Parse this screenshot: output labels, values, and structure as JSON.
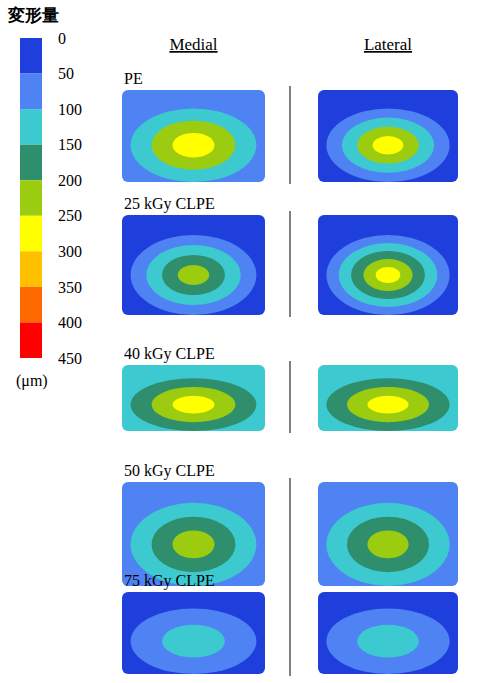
{
  "chart_data": {
    "type": "heatmap",
    "title": "変形量",
    "colorbar": {
      "range": [
        0,
        450
      ],
      "ticks": [
        0,
        50,
        100,
        150,
        200,
        250,
        300,
        350,
        400,
        450
      ],
      "colors": [
        "#1f3fdc",
        "#4f82f2",
        "#3cc9cf",
        "#2f8f6c",
        "#9ccc10",
        "#ffff00",
        "#ffc000",
        "#ff6a00",
        "#ff0000"
      ],
      "unit": "(μm)"
    },
    "columns": [
      "Medial",
      "Lateral"
    ],
    "panels": [
      {
        "name": "PE",
        "medial": [
          50,
          100,
          200,
          250
        ],
        "lateral": [
          0,
          50,
          100,
          200,
          250
        ]
      },
      {
        "name": "25 kGy CLPE",
        "medial": [
          0,
          50,
          100,
          150,
          200
        ],
        "lateral": [
          0,
          50,
          100,
          150,
          200,
          250
        ]
      },
      {
        "name": "40 kGy CLPE",
        "medial": [
          100,
          150,
          200,
          250
        ],
        "lateral": [
          100,
          150,
          200,
          250
        ]
      },
      {
        "name": "50 kGy CLPE",
        "medial": [
          50,
          100,
          150,
          200
        ],
        "lateral": [
          50,
          100,
          150,
          200
        ]
      },
      {
        "name": "75 kGy CLPE",
        "medial": [
          0,
          50,
          100
        ],
        "lateral": [
          0,
          50,
          100
        ]
      }
    ]
  }
}
